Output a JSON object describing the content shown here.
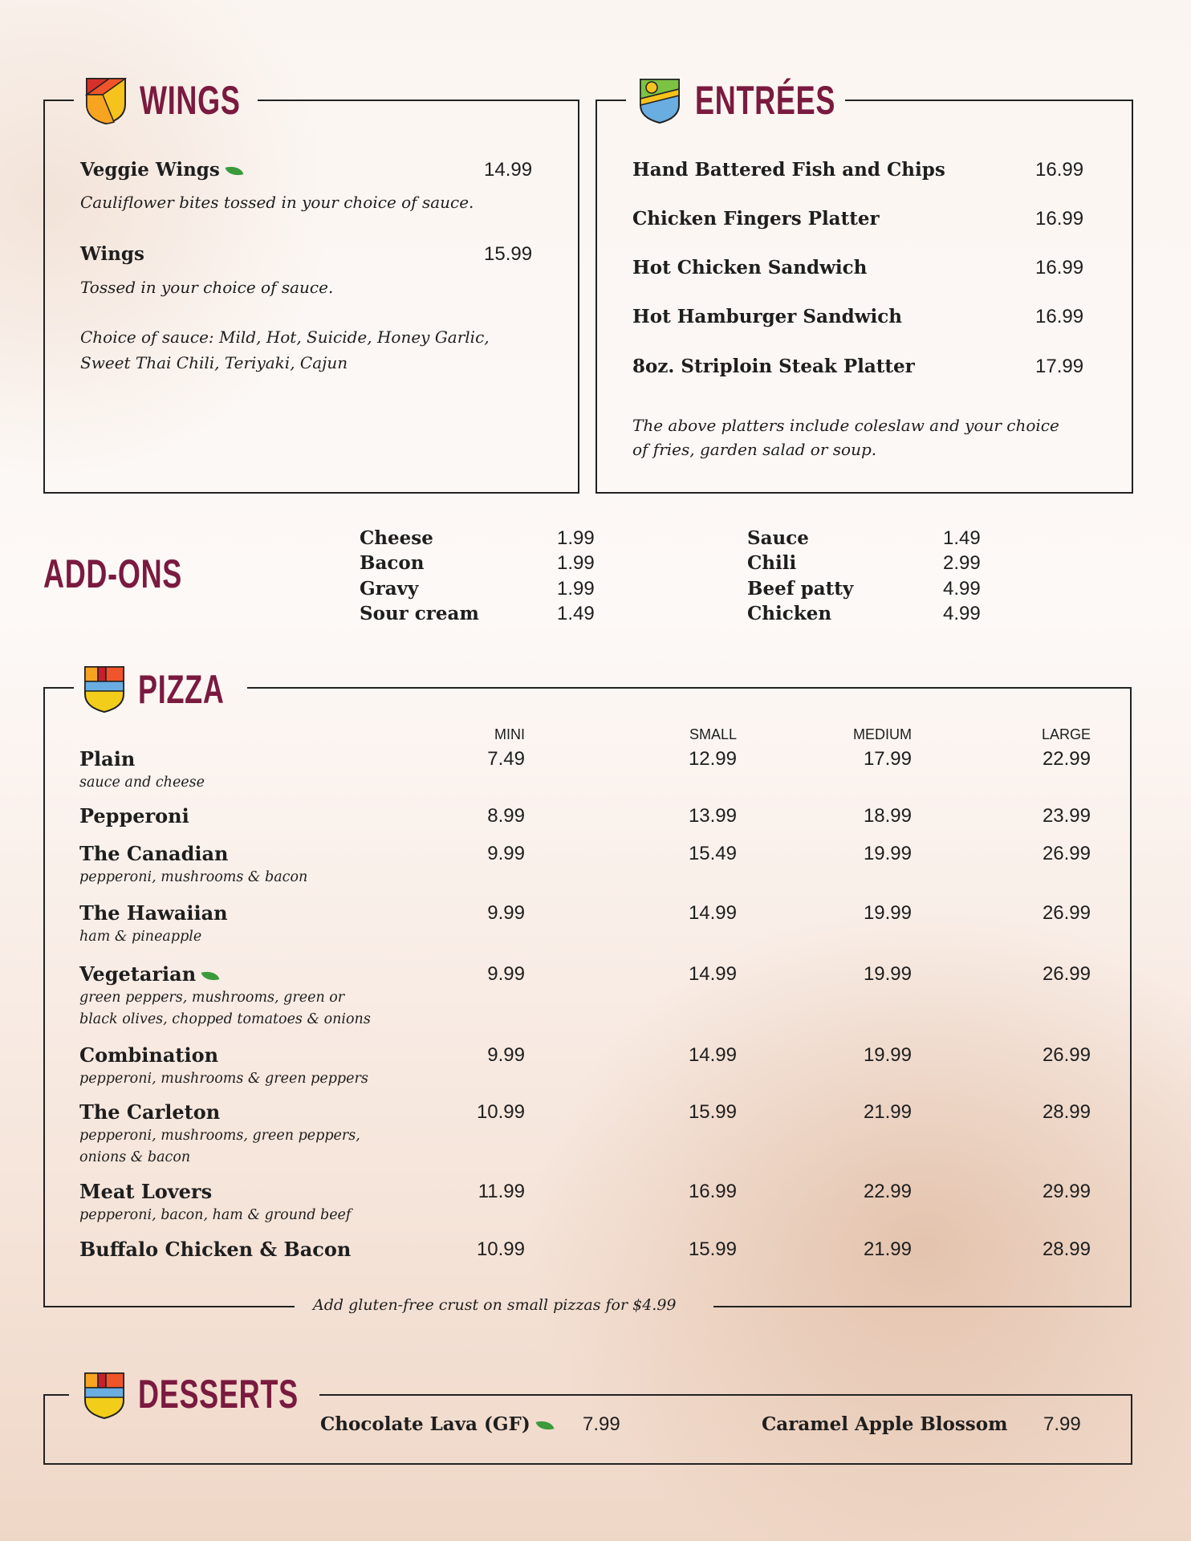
{
  "colors": {
    "heading": "#7a1a3f",
    "veg_leaf": "#3a9a3c",
    "border": "#222222"
  },
  "wings": {
    "title": "WINGS",
    "icon": "shield-orange-icon",
    "items": [
      {
        "name": "Veggie Wings",
        "veg": true,
        "price": "14.99",
        "desc": "Cauliflower bites tossed in your choice of sauce."
      },
      {
        "name": "Wings",
        "veg": false,
        "price": "15.99",
        "desc": "Tossed in your choice of sauce."
      }
    ],
    "sauce_note": [
      "Choice of sauce: Mild, Hot, Suicide, Honey Garlic,",
      "Sweet Thai Chili, Teriyaki, Cajun"
    ]
  },
  "entrees": {
    "title": "ENTRÉES",
    "icon": "shield-sun-icon",
    "items": [
      {
        "name": "Hand Battered Fish and Chips",
        "price": "16.99"
      },
      {
        "name": "Chicken Fingers Platter",
        "price": "16.99"
      },
      {
        "name": "Hot Chicken Sandwich",
        "price": "16.99"
      },
      {
        "name": "Hot Hamburger Sandwich",
        "price": "16.99"
      },
      {
        "name": "8oz. Striploin Steak Platter",
        "price": "17.99"
      }
    ],
    "note": [
      "The above platters include coleslaw and your choice",
      "of fries, garden salad or soup."
    ]
  },
  "addons": {
    "title": "ADD-ONS",
    "col1": [
      {
        "name": "Cheese",
        "price": "1.99"
      },
      {
        "name": "Bacon",
        "price": "1.99"
      },
      {
        "name": "Gravy",
        "price": "1.99"
      },
      {
        "name": "Sour cream",
        "price": "1.49"
      }
    ],
    "col2": [
      {
        "name": "Sauce",
        "price": "1.49"
      },
      {
        "name": "Chili",
        "price": "2.99"
      },
      {
        "name": "Beef patty",
        "price": "4.99"
      },
      {
        "name": "Chicken",
        "price": "4.99"
      }
    ]
  },
  "pizza": {
    "title": "PIZZA",
    "icon": "shield-stripes-icon",
    "sizes": [
      "MINI",
      "SMALL",
      "MEDIUM",
      "LARGE"
    ],
    "items": [
      {
        "name": "Plain",
        "desc": [
          "sauce and cheese"
        ],
        "prices": [
          "7.49",
          "12.99",
          "17.99",
          "22.99"
        ]
      },
      {
        "name": "Pepperoni",
        "desc": [],
        "prices": [
          "8.99",
          "13.99",
          "18.99",
          "23.99"
        ]
      },
      {
        "name": "The Canadian",
        "desc": [
          "pepperoni, mushrooms & bacon"
        ],
        "prices": [
          "9.99",
          "15.49",
          "19.99",
          "26.99"
        ]
      },
      {
        "name": "The Hawaiian",
        "desc": [
          "ham & pineapple"
        ],
        "prices": [
          "9.99",
          "14.99",
          "19.99",
          "26.99"
        ]
      },
      {
        "name": "Vegetarian",
        "veg": true,
        "desc": [
          "green peppers, mushrooms, green or",
          "black olives, chopped tomatoes & onions"
        ],
        "prices": [
          "9.99",
          "14.99",
          "19.99",
          "26.99"
        ]
      },
      {
        "name": "Combination",
        "desc": [
          "pepperoni, mushrooms & green peppers"
        ],
        "prices": [
          "9.99",
          "14.99",
          "19.99",
          "26.99"
        ]
      },
      {
        "name": "The Carleton",
        "desc": [
          "pepperoni, mushrooms, green peppers,",
          "onions & bacon"
        ],
        "prices": [
          "10.99",
          "15.99",
          "21.99",
          "28.99"
        ]
      },
      {
        "name": "Meat Lovers",
        "desc": [
          "pepperoni, bacon, ham & ground beef"
        ],
        "prices": [
          "11.99",
          "16.99",
          "22.99",
          "29.99"
        ]
      },
      {
        "name": "Buffalo Chicken & Bacon",
        "desc": [],
        "prices": [
          "10.99",
          "15.99",
          "21.99",
          "28.99"
        ]
      }
    ],
    "footnote": "Add gluten-free crust on small pizzas for $4.99"
  },
  "desserts": {
    "title": "DESSERTS",
    "icon": "shield-stripes-icon",
    "items": [
      {
        "name": "Chocolate Lava (GF)",
        "veg": true,
        "price": "7.99"
      },
      {
        "name": "Caramel Apple Blossom",
        "price": "7.99"
      }
    ]
  }
}
